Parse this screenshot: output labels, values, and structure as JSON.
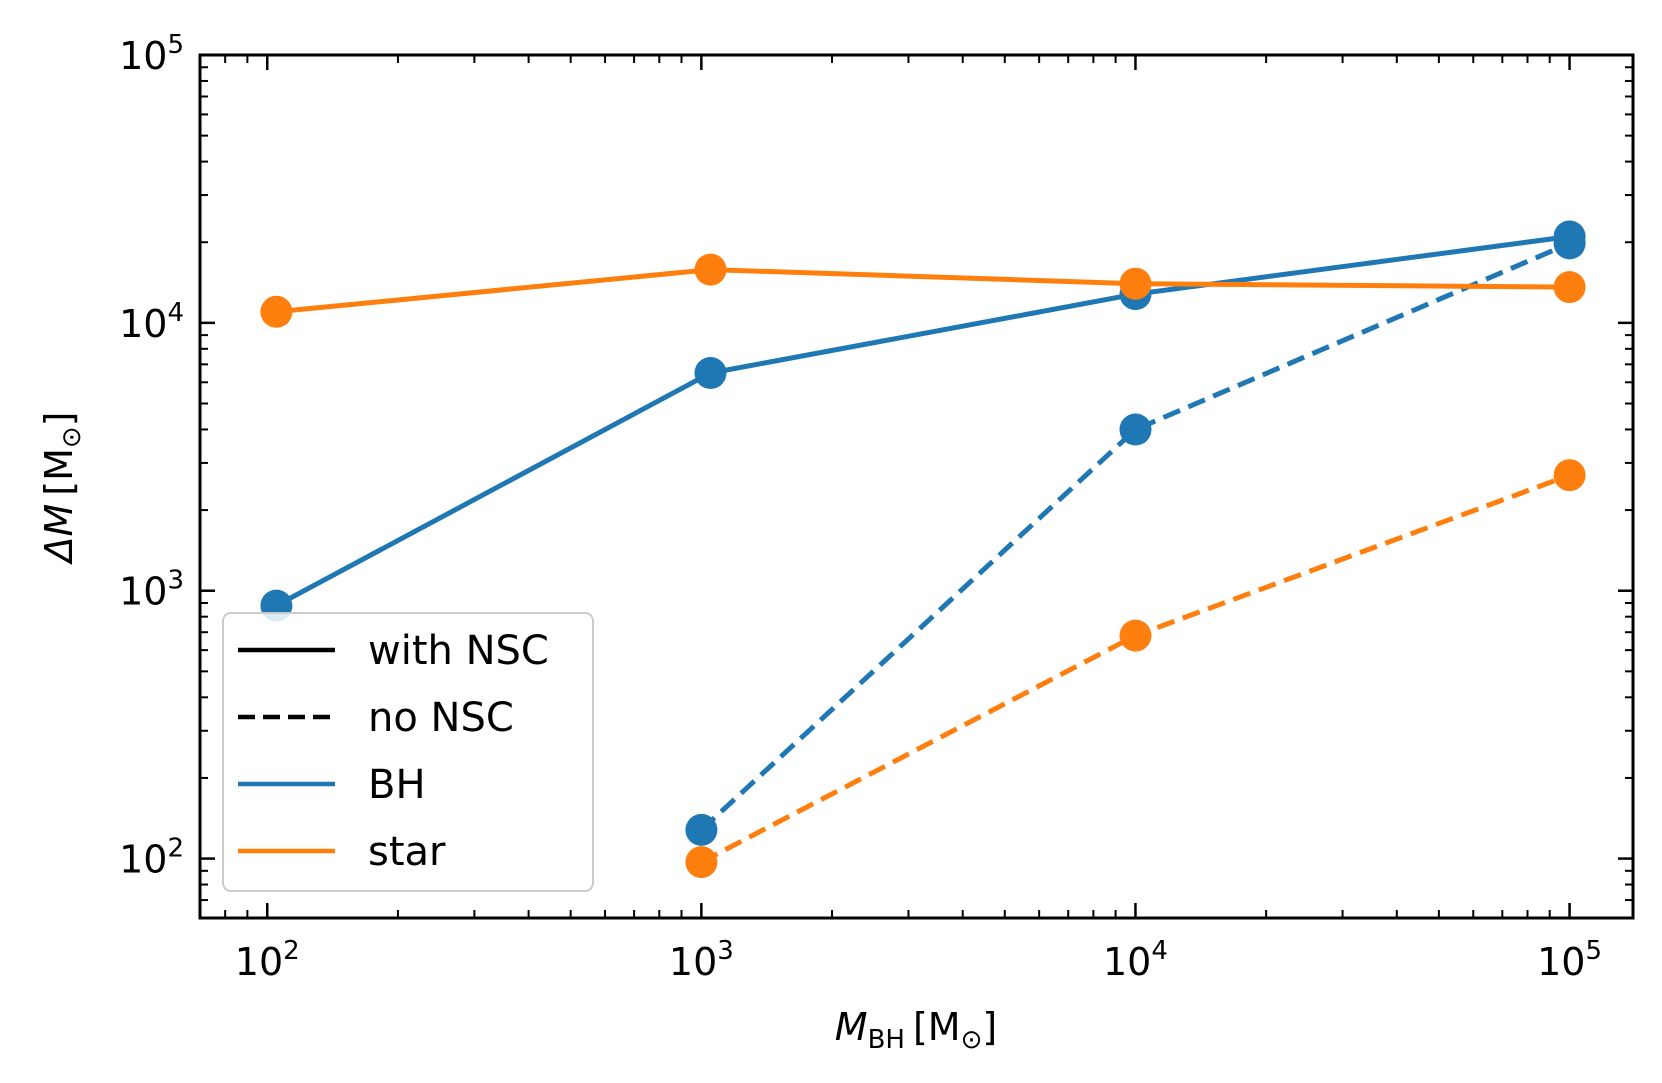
{
  "chart_data": {
    "type": "line",
    "xscale": "log",
    "yscale": "log",
    "xlim": [
      70,
      140000
    ],
    "ylim": [
      60,
      100000
    ],
    "xlabel": {
      "main": "M",
      "sub": "BH",
      "unit": "[M",
      "unit_sub": "⊙",
      "unit_close": "]"
    },
    "ylabel": {
      "main": "ΔM",
      "unit": "[M",
      "unit_sub": "⊙",
      "unit_close": "]"
    },
    "xticks": [
      {
        "value": 100,
        "base": "10",
        "exp": "2"
      },
      {
        "value": 1000,
        "base": "10",
        "exp": "3"
      },
      {
        "value": 10000,
        "base": "10",
        "exp": "4"
      },
      {
        "value": 100000,
        "base": "10",
        "exp": "5"
      }
    ],
    "yticks": [
      {
        "value": 100,
        "base": "10",
        "exp": "2"
      },
      {
        "value": 1000,
        "base": "10",
        "exp": "3"
      },
      {
        "value": 10000,
        "base": "10",
        "exp": "4"
      },
      {
        "value": 100000,
        "base": "10",
        "exp": "5"
      }
    ],
    "series": [
      {
        "id": "bh-nsc",
        "object": "BH",
        "case": "with NSC",
        "color": "#1f77b4",
        "dash": "solid",
        "x": [
          105,
          1050,
          10000,
          100000
        ],
        "y": [
          880,
          6500,
          12800,
          21000
        ]
      },
      {
        "id": "star-nsc",
        "object": "star",
        "case": "with NSC",
        "color": "#ff7f0e",
        "dash": "solid",
        "x": [
          105,
          1050,
          10000,
          100000
        ],
        "y": [
          11000,
          15800,
          14000,
          13600
        ]
      },
      {
        "id": "bh-nonsc",
        "object": "BH",
        "case": "no NSC",
        "color": "#1f77b4",
        "dash": "dashed",
        "x": [
          1000,
          10000,
          100000
        ],
        "y": [
          128,
          4000,
          19800
        ]
      },
      {
        "id": "star-nonsc",
        "object": "star",
        "case": "no NSC",
        "color": "#ff7f0e",
        "dash": "dashed",
        "x": [
          1000,
          10000,
          100000
        ],
        "y": [
          97,
          680,
          2700
        ]
      }
    ],
    "legend": {
      "position": "lower-left",
      "entries": [
        {
          "label": "with NSC",
          "color": "#000000",
          "dash": "solid"
        },
        {
          "label": "no NSC",
          "color": "#000000",
          "dash": "dashed"
        },
        {
          "label": "BH",
          "color": "#1f77b4",
          "dash": "solid"
        },
        {
          "label": "star",
          "color": "#ff7f0e",
          "dash": "solid"
        }
      ]
    }
  }
}
